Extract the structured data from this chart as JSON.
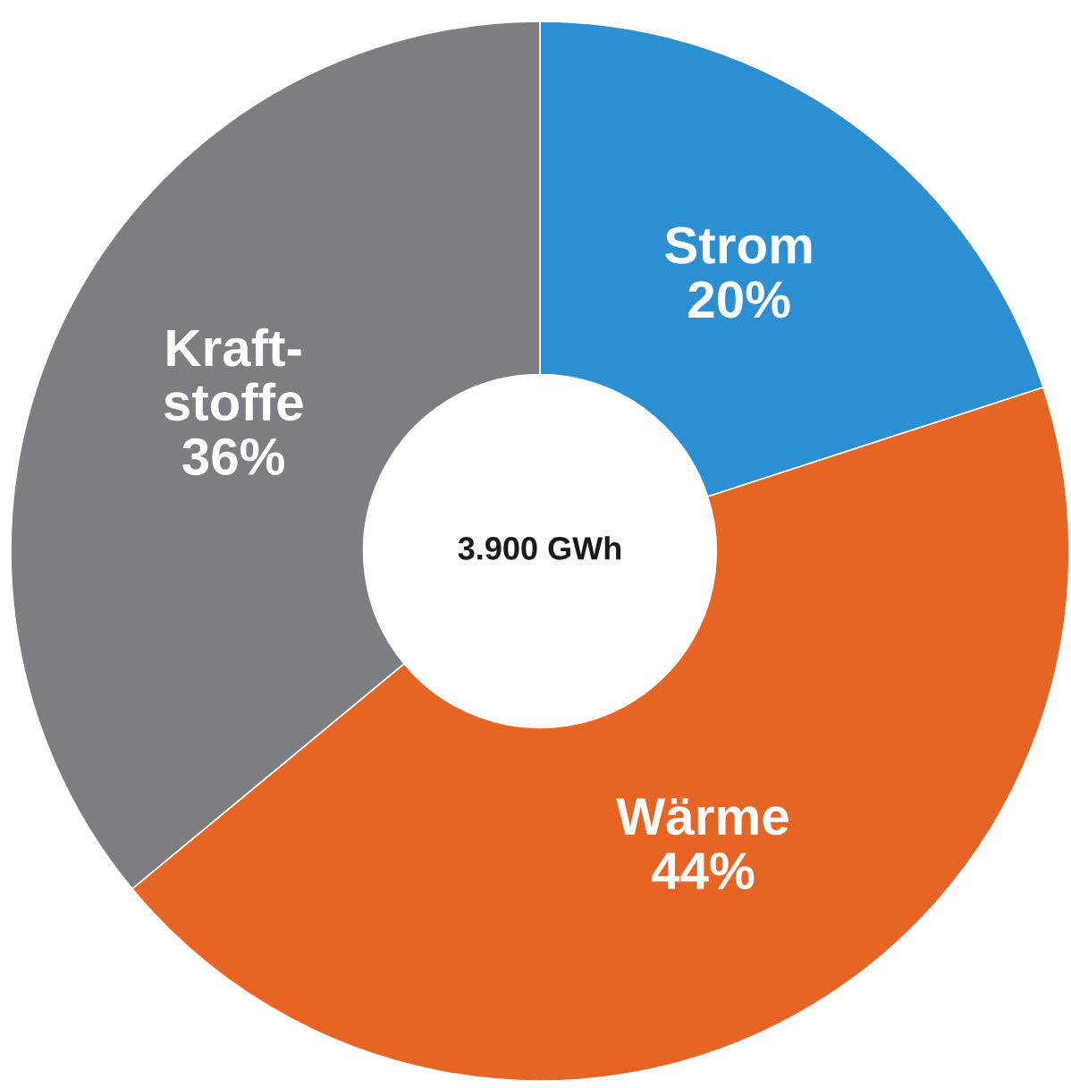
{
  "chart_data": {
    "type": "donut",
    "categories": [
      "Strom",
      "Wärme",
      "Kraft-\nstoffe"
    ],
    "values": [
      20,
      44,
      36
    ],
    "colors": [
      "#2b8fd1",
      "#e66424",
      "#7d7e82"
    ],
    "value_labels": [
      "20%",
      "44%",
      "36%"
    ],
    "annotations": [
      "3.900 GWh"
    ]
  }
}
